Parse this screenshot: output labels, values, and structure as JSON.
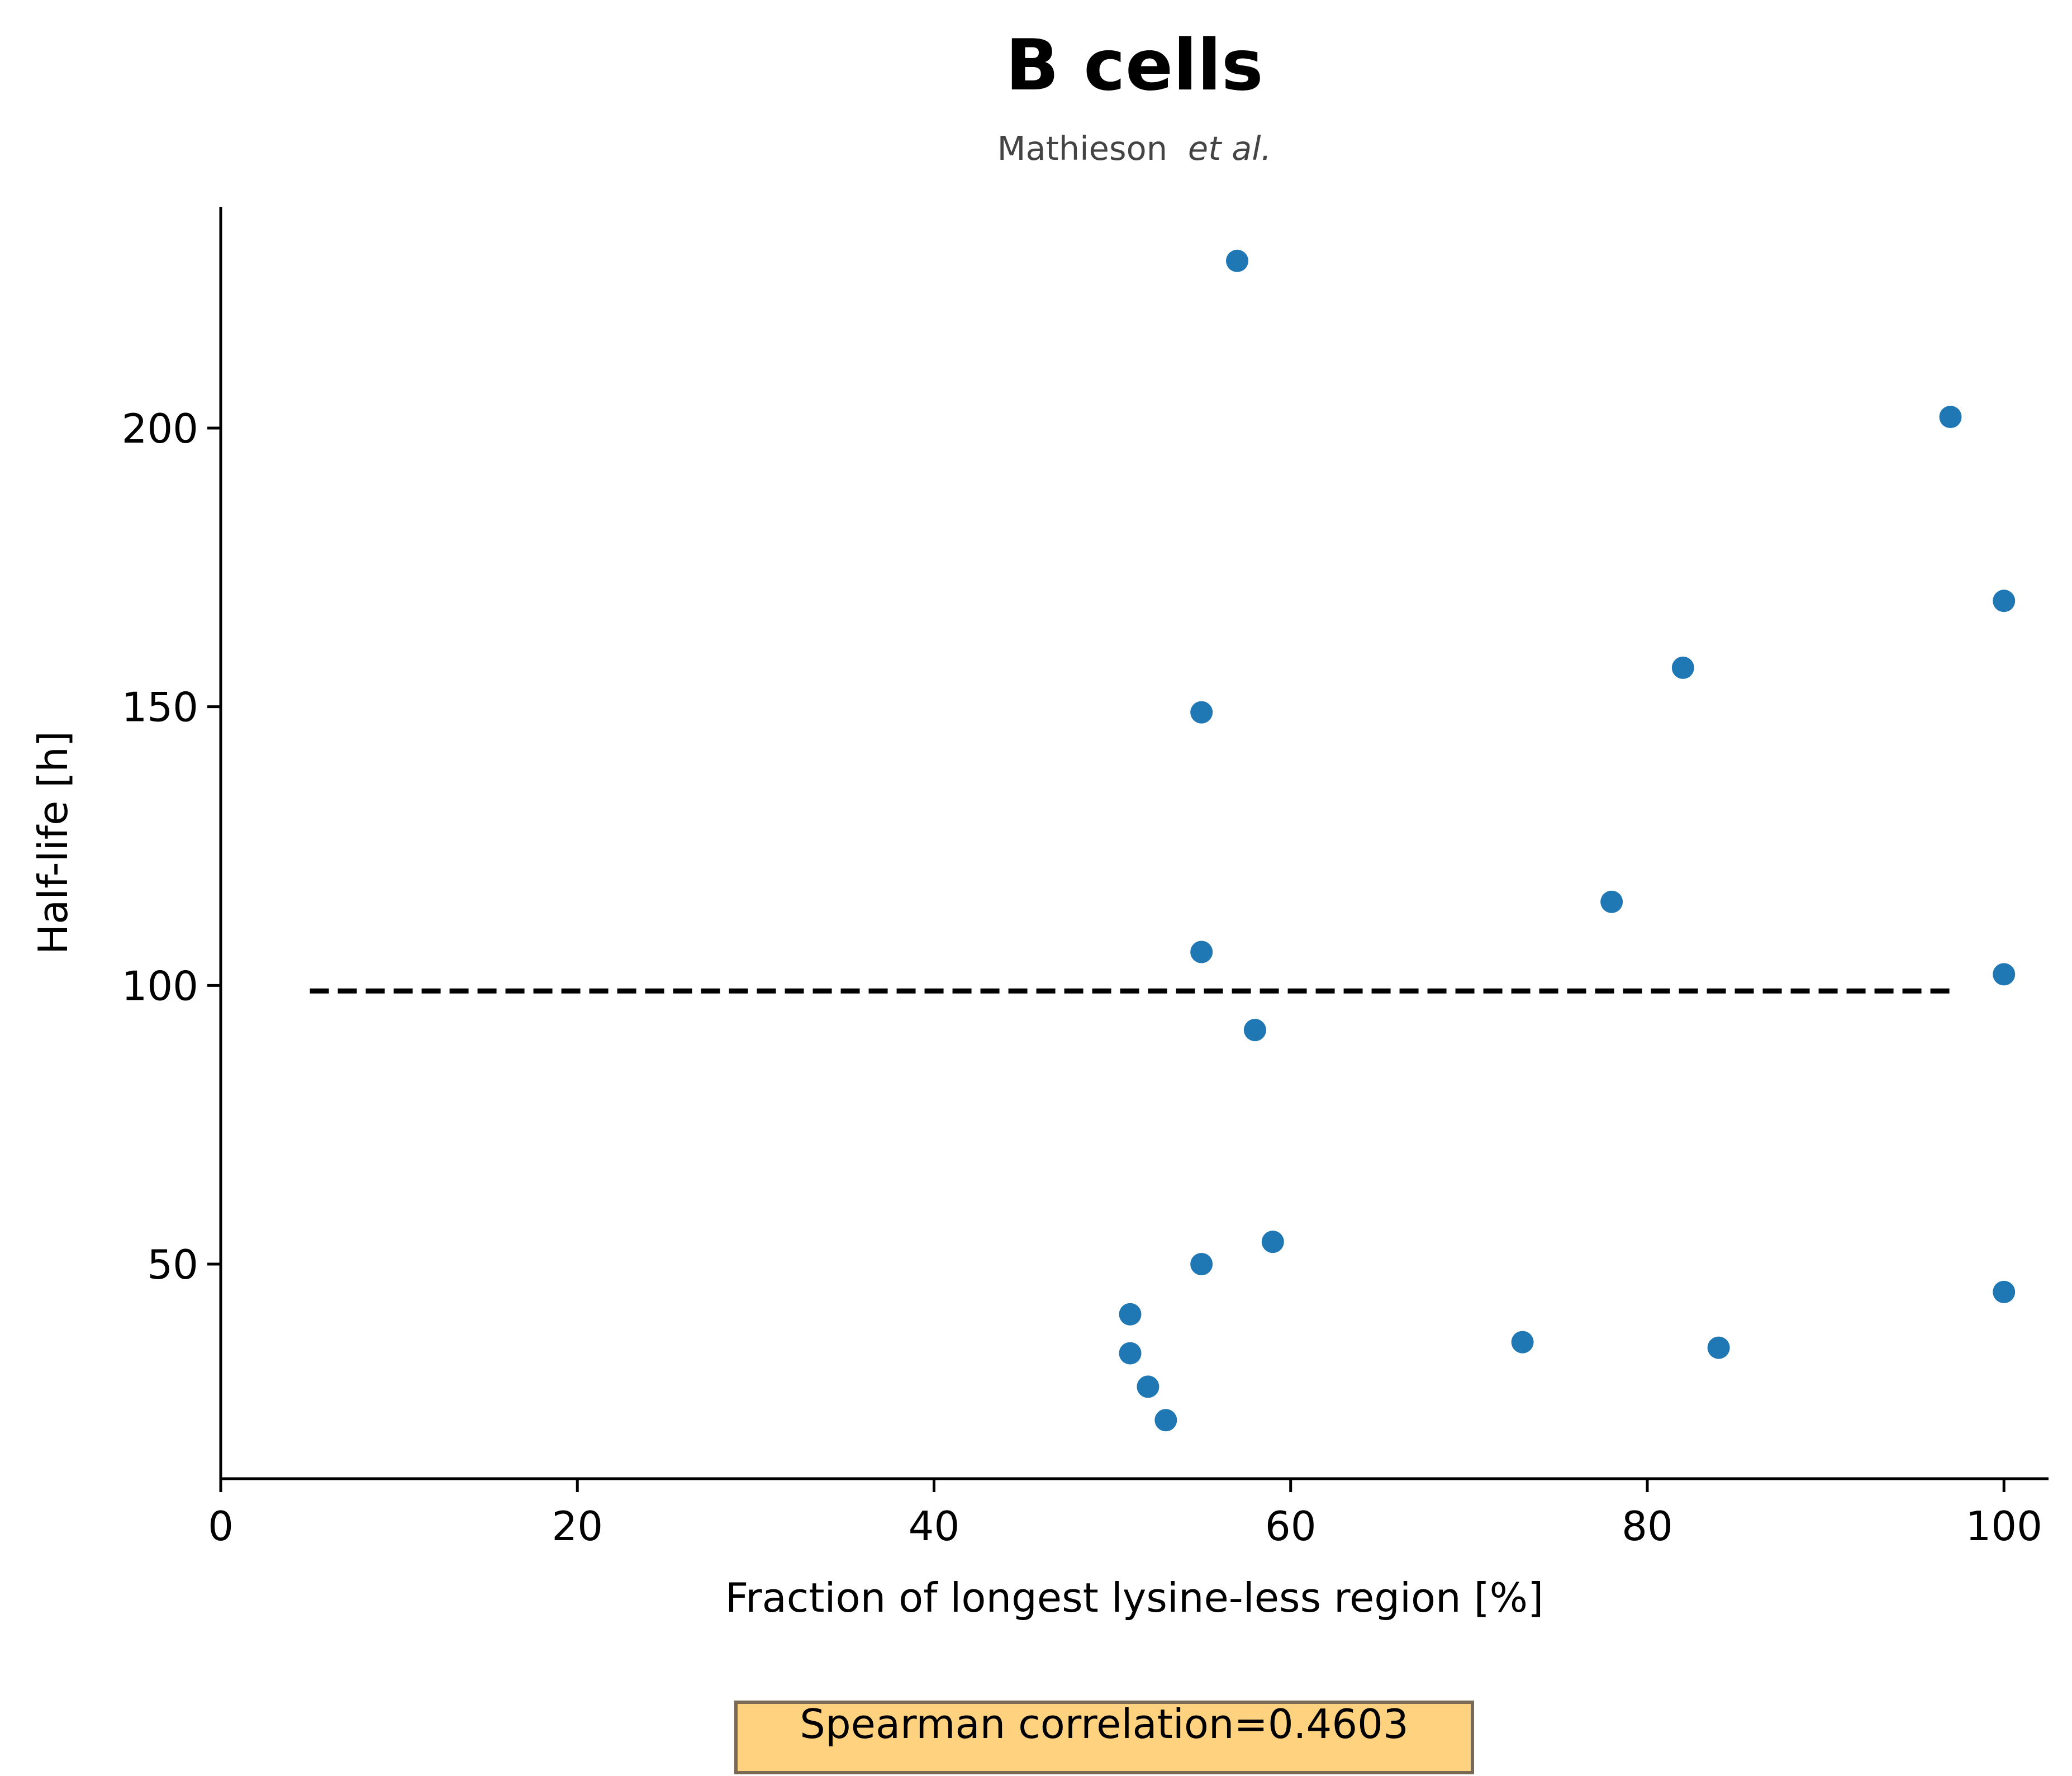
{
  "chart_data": {
    "type": "scatter",
    "title": "B cells",
    "subtitle": {
      "author": "Mathieson",
      "suffix": "et al."
    },
    "xlabel": "Fraction of longest lysine-less region [%]",
    "ylabel": "Half-life [h]",
    "xlim": [
      0,
      102.5
    ],
    "ylim": [
      12,
      241
    ],
    "x_ticks": [
      0,
      20,
      40,
      60,
      80,
      100
    ],
    "y_ticks": [
      50,
      100,
      150,
      200
    ],
    "x_tick_labels": [
      "0",
      "20",
      "40",
      "60",
      "80",
      "100"
    ],
    "y_tick_labels": [
      "50",
      "100",
      "150",
      "200"
    ],
    "grid": false,
    "series": [
      {
        "color": "#1f77b4",
        "points": [
          {
            "x": 57,
            "y": 230
          },
          {
            "x": 97,
            "y": 202
          },
          {
            "x": 100,
            "y": 169
          },
          {
            "x": 82,
            "y": 157
          },
          {
            "x": 55,
            "y": 149
          },
          {
            "x": 78,
            "y": 115
          },
          {
            "x": 55,
            "y": 106
          },
          {
            "x": 100,
            "y": 102
          },
          {
            "x": 58,
            "y": 92
          },
          {
            "x": 59,
            "y": 54
          },
          {
            "x": 55,
            "y": 50
          },
          {
            "x": 100,
            "y": 45
          },
          {
            "x": 51,
            "y": 41
          },
          {
            "x": 51,
            "y": 34
          },
          {
            "x": 73,
            "y": 36
          },
          {
            "x": 84,
            "y": 35
          },
          {
            "x": 52,
            "y": 28
          },
          {
            "x": 53,
            "y": 22
          }
        ]
      }
    ],
    "reference_line": {
      "style": "dashed",
      "color": "#000000",
      "x_start": 5,
      "x_end": 97,
      "y": 99
    },
    "annotation": {
      "text": "Spearman correlation=0.4603",
      "background": "#ffd27f",
      "border": "#7a6a55"
    }
  }
}
